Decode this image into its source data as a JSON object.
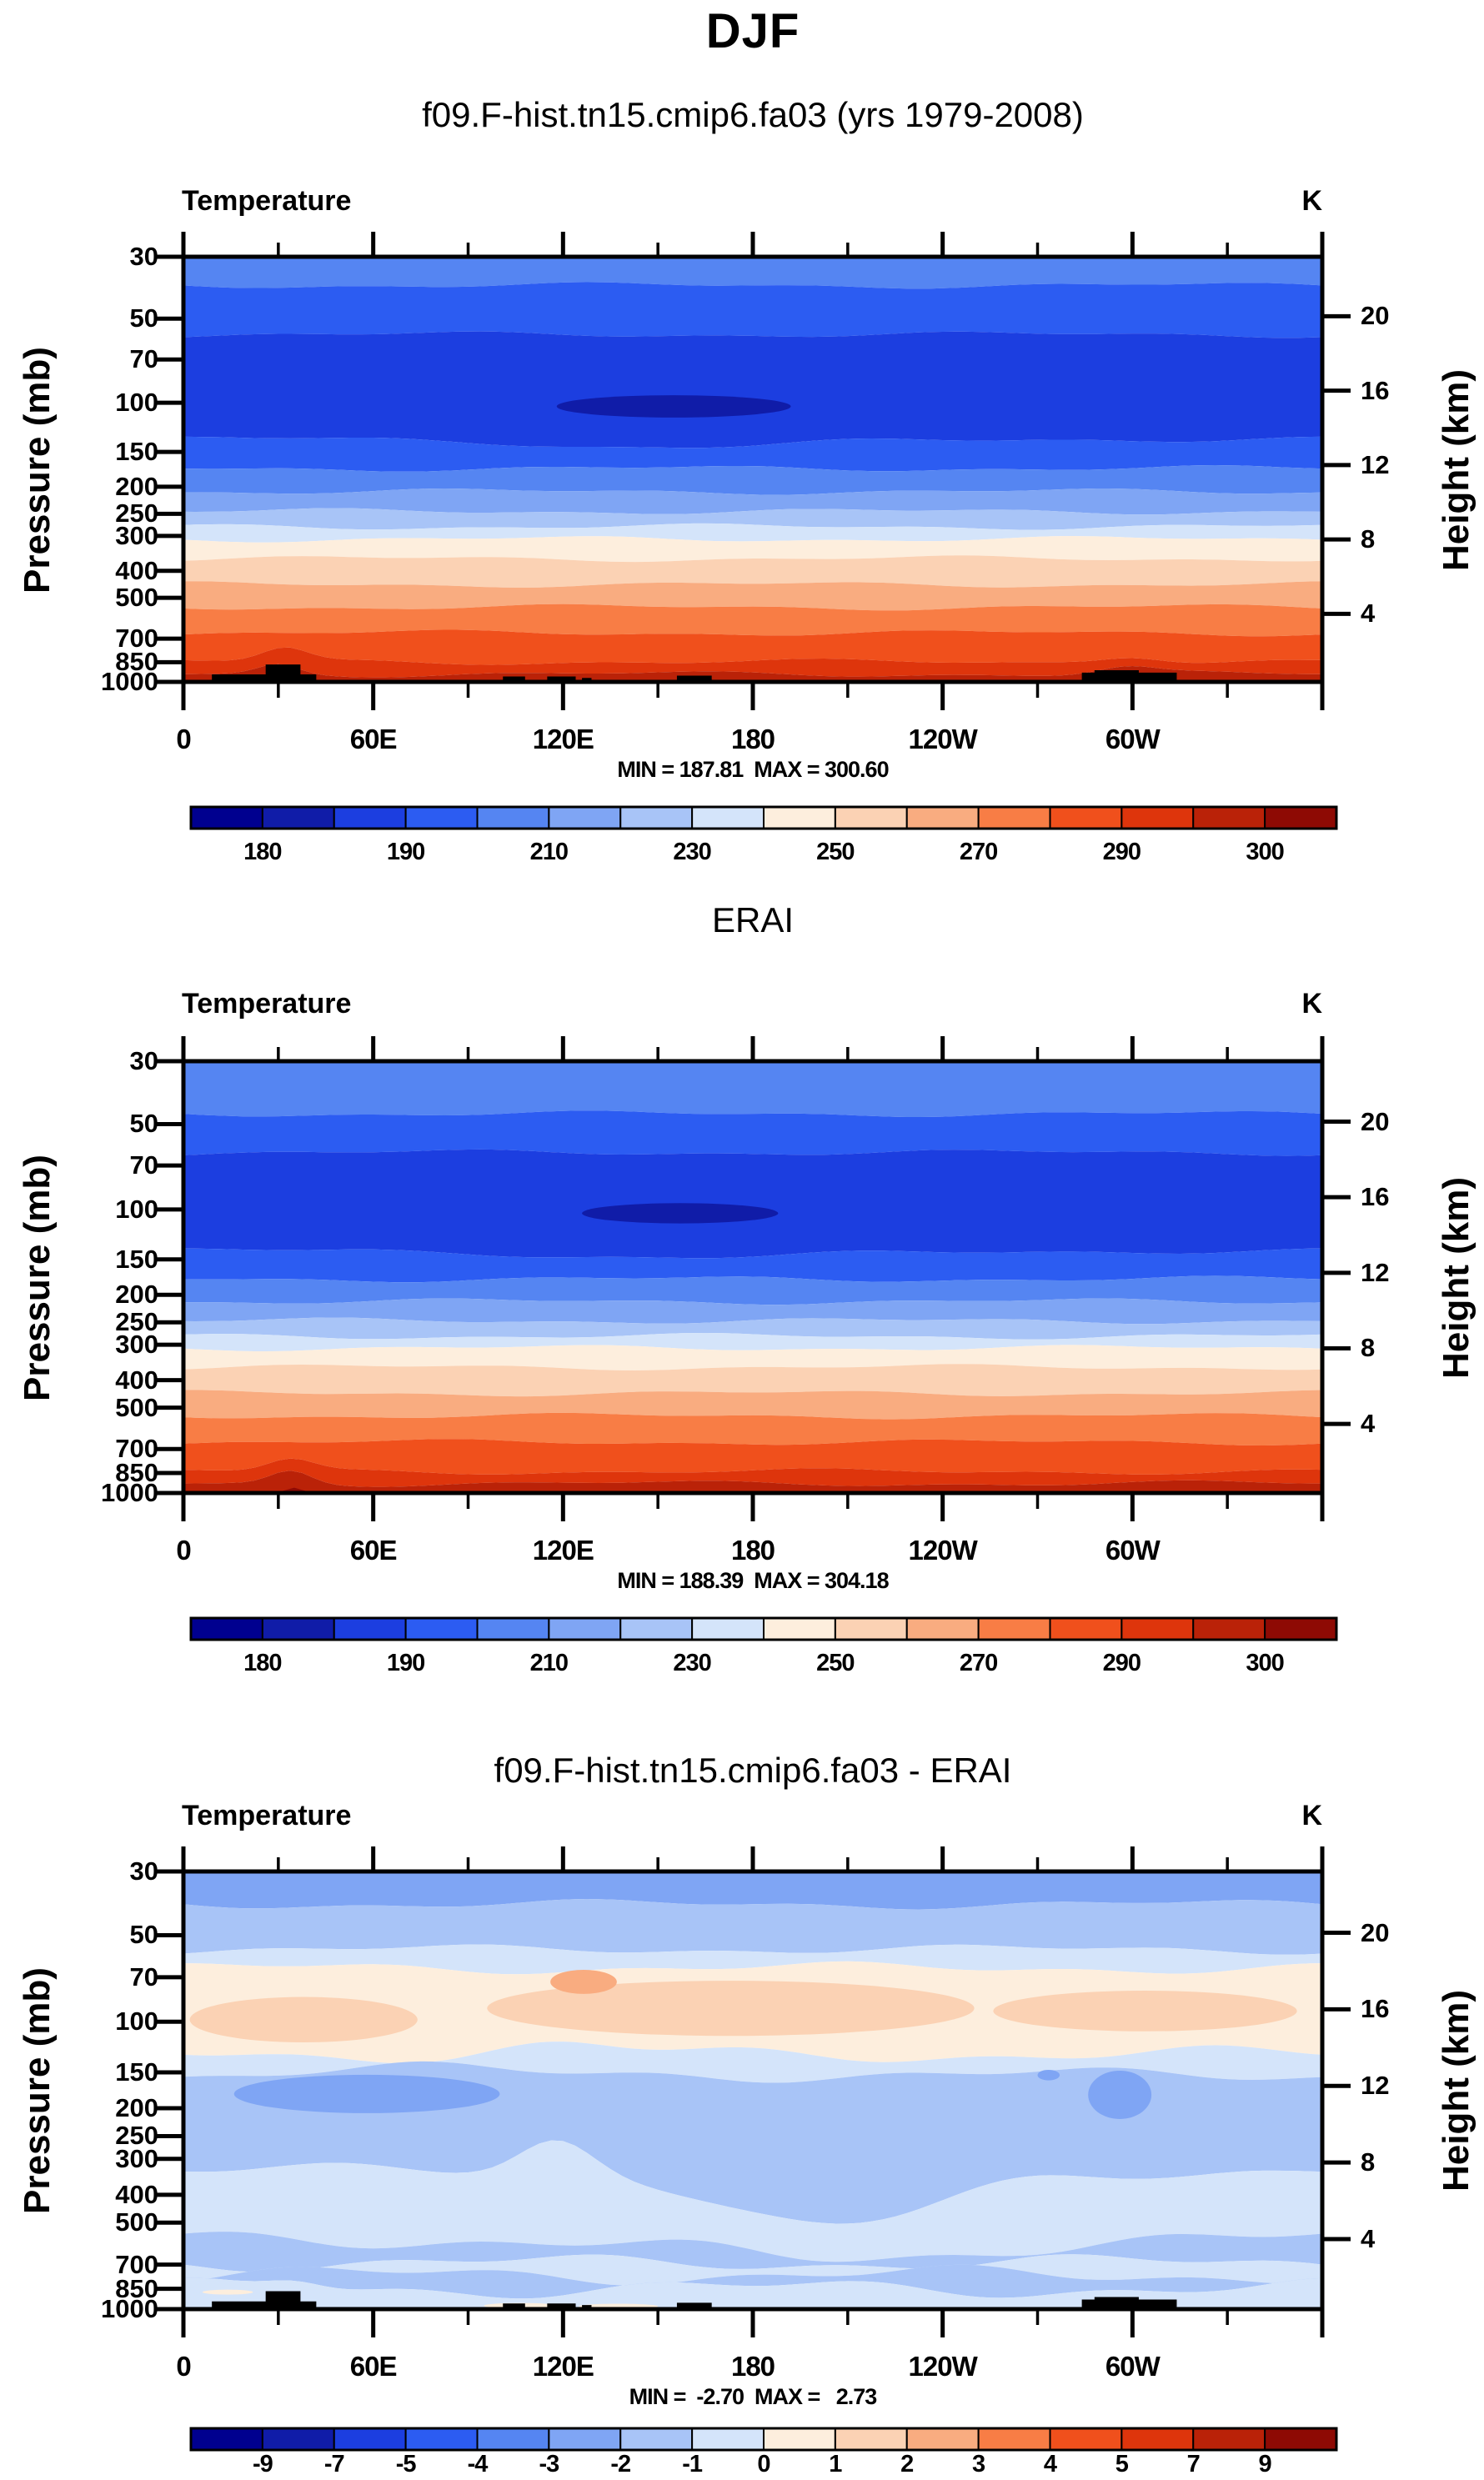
{
  "page": {
    "title": "DJF",
    "subtitle": "f09.F-hist.tn15.cmip6.fa03 (yrs 1979-2008)"
  },
  "palette": [
    "#00008f",
    "#101ca8",
    "#1c3ee0",
    "#2c5cf2",
    "#5585f2",
    "#7fa5f4",
    "#a8c4f7",
    "#d4e4fa",
    "#fdeedd",
    "#fbd2b4",
    "#f9ac80",
    "#f87d45",
    "#f0501c",
    "#de350c",
    "#ba2208",
    "#8e0a04"
  ],
  "axis": {
    "x_tick_labels": [
      "0",
      "60E",
      "120E",
      "180",
      "120W",
      "60W"
    ],
    "x_tick_lons": [
      0,
      60,
      120,
      180,
      240,
      300
    ],
    "x_minor_lons": [
      30,
      90,
      150,
      210,
      270,
      330
    ],
    "pressure_ticks": [
      "30",
      "50",
      "70",
      "100",
      "150",
      "200",
      "250",
      "300",
      "400",
      "500",
      "700",
      "850",
      "1000"
    ],
    "pressure_values": [
      30,
      50,
      70,
      100,
      150,
      200,
      250,
      300,
      400,
      500,
      700,
      850,
      1000
    ],
    "height_ticks": [
      "20",
      "16",
      "12",
      "8",
      "4"
    ],
    "height_values": [
      20,
      16,
      12,
      8,
      4
    ],
    "pressure_axis_title": "Pressure (mb)",
    "height_axis_title": "Height (km)"
  },
  "chart_data": {
    "type": "filled-contour-cross-section",
    "x_range_deg": [
      0,
      360
    ],
    "pressure_range_mb": [
      30,
      1000
    ],
    "panels": [
      {
        "name": "model",
        "title": "f09.F-hist.tn15.cmip6.fa03 (yrs 1979-2008)",
        "field_label": "Temperature",
        "unit_label": "K",
        "min": 187.81,
        "max": 300.6,
        "minmax_text": "MIN = 187.81  MAX = 300.60",
        "amp": 2.5,
        "bands": [
          {
            "p": 38,
            "c": 5
          },
          {
            "p": 57,
            "c": 4
          },
          {
            "p": 135,
            "c": 3,
            "b": [
              [
                155,
                55,
                10
              ]
            ]
          },
          {
            "p": 172,
            "c": 4
          },
          {
            "p": 208,
            "c": 5
          },
          {
            "p": 245,
            "c": 6
          },
          {
            "p": 278,
            "c": 7
          },
          {
            "p": 308,
            "c": 8
          },
          {
            "p": 362,
            "c": 9
          },
          {
            "p": 448,
            "c": 10
          },
          {
            "p": 540,
            "c": 11
          },
          {
            "p": 668,
            "c": 12
          },
          {
            "p": 848,
            "c": 13,
            "b": [
              [
                32,
                10,
                -16
              ],
              [
                300,
                14,
                -8
              ]
            ]
          },
          {
            "p": 938,
            "c": 14,
            "b": [
              [
                30,
                9,
                -12
              ],
              [
                298,
                12,
                -8
              ]
            ]
          },
          {
            "p": 1001,
            "c": 15
          }
        ],
        "blobs": [
          {
            "k": "lens",
            "lon": [
              118,
              192
            ],
            "p": [
              94,
              113
            ],
            "c": 2
          }
        ],
        "topo": [
          [
            9,
            42,
            940
          ],
          [
            26,
            37,
            866
          ],
          [
            101,
            108,
            956
          ],
          [
            115,
            124,
            956
          ],
          [
            126,
            129,
            968
          ],
          [
            156,
            167,
            950
          ],
          [
            284,
            314,
            926
          ],
          [
            288,
            302,
            908
          ]
        ],
        "colorbar": {
          "levels": [
            180,
            185,
            190,
            200,
            210,
            220,
            230,
            240,
            250,
            260,
            270,
            280,
            290,
            295,
            300
          ],
          "label_texts": [
            "180",
            "190",
            "210",
            "230",
            "250",
            "270",
            "290",
            "300"
          ],
          "label_bounds": [
            1,
            3,
            5,
            7,
            9,
            11,
            13,
            15
          ]
        }
      },
      {
        "name": "reference",
        "title": "ERAI",
        "field_label": "Temperature",
        "unit_label": "K",
        "min": 188.39,
        "max": 304.18,
        "minmax_text": "MIN = 188.39  MAX = 304.18",
        "amp": 2.5,
        "bands": [
          {
            "p": 46,
            "c": 5
          },
          {
            "p": 63,
            "c": 4
          },
          {
            "p": 140,
            "c": 3,
            "b": [
              [
                160,
                60,
                8
              ]
            ]
          },
          {
            "p": 176,
            "c": 4
          },
          {
            "p": 211,
            "c": 5
          },
          {
            "p": 247,
            "c": 6
          },
          {
            "p": 280,
            "c": 7
          },
          {
            "p": 308,
            "c": 8
          },
          {
            "p": 360,
            "c": 9
          },
          {
            "p": 445,
            "c": 10
          },
          {
            "p": 535,
            "c": 11
          },
          {
            "p": 662,
            "c": 12
          },
          {
            "p": 840,
            "c": 13,
            "b": [
              [
                34,
                10,
                -14
              ]
            ]
          },
          {
            "p": 926,
            "c": 14,
            "b": [
              [
                34,
                9,
                -16
              ]
            ]
          },
          {
            "p": 1001,
            "c": 15
          }
        ],
        "blobs": [
          {
            "k": "lens",
            "lon": [
              126,
              188
            ],
            "p": [
              95,
              112
            ],
            "c": 2
          },
          {
            "k": "tri",
            "lon": [
              29,
              41
            ],
            "p": [
              958,
              1000
            ],
            "c": 16
          }
        ],
        "topo": [],
        "colorbar": {
          "levels": [
            180,
            185,
            190,
            200,
            210,
            220,
            230,
            240,
            250,
            260,
            270,
            280,
            290,
            295,
            300
          ],
          "label_texts": [
            "180",
            "190",
            "210",
            "230",
            "250",
            "270",
            "290",
            "300"
          ],
          "label_bounds": [
            1,
            3,
            5,
            7,
            9,
            11,
            13,
            15
          ]
        }
      },
      {
        "name": "difference",
        "title": "f09.F-hist.tn15.cmip6.fa03 - ERAI",
        "field_label": "Temperature",
        "unit_label": "K",
        "min": -2.7,
        "max": 2.73,
        "minmax_text": "MIN =  -2.70  MAX =   2.73",
        "amp": 5,
        "bands": [
          {
            "p": 39,
            "c": 6,
            "a": 4
          },
          {
            "p": 56,
            "c": 7,
            "a": 4
          },
          {
            "p": 65,
            "c": 8,
            "a": 5
          },
          {
            "p": 130,
            "c": 9,
            "a": 7,
            "b": [
              [
                120,
                25,
                -10
              ]
            ]
          },
          {
            "p": 153,
            "c": 8,
            "a": 6,
            "b": [
              [
                60,
                35,
                -10
              ]
            ]
          },
          {
            "p": 330,
            "c": 7,
            "a": 6,
            "b": [
              [
                205,
                45,
                70
              ],
              [
                118,
                16,
                -40
              ]
            ]
          },
          {
            "p": 572,
            "c": 8,
            "a": 8,
            "b": [
              [
                205,
                55,
                25
              ]
            ]
          },
          {
            "p": 690,
            "c": 7,
            "a": 7
          },
          {
            "p": 762,
            "c": 8,
            "a": 8
          },
          {
            "p": 848,
            "c": 7,
            "a": 8,
            "b": [
              [
                35,
                12,
                -10
              ]
            ]
          },
          {
            "p": 1001,
            "c": 8
          }
        ],
        "blobs": [
          {
            "k": "lens",
            "lon": [
              2,
              74
            ],
            "p": [
              82,
              118
            ],
            "c": 10
          },
          {
            "k": "lens",
            "lon": [
              96,
              250
            ],
            "p": [
              72,
              112
            ],
            "c": 10
          },
          {
            "k": "lens",
            "lon": [
              256,
              352
            ],
            "p": [
              78,
              108
            ],
            "c": 10
          },
          {
            "k": "lens",
            "lon": [
              116,
              137
            ],
            "p": [
              66,
              80
            ],
            "c": 11
          },
          {
            "k": "lens",
            "lon": [
              16,
              100
            ],
            "p": [
              153,
              208
            ],
            "c": 6
          },
          {
            "k": "lens",
            "lon": [
              286,
              306
            ],
            "p": [
              148,
              218
            ],
            "c": 6
          },
          {
            "k": "lens",
            "lon": [
              270,
              277
            ],
            "p": [
              147,
              160
            ],
            "c": 6
          },
          {
            "k": "lens",
            "lon": [
              6,
              22
            ],
            "p": [
              858,
              888
            ],
            "c": 9
          },
          {
            "k": "lens",
            "lon": [
              95,
              118
            ],
            "p": [
              952,
              995
            ],
            "c": 9
          },
          {
            "k": "lens",
            "lon": [
              125,
              150
            ],
            "p": [
              958,
              998
            ],
            "c": 9
          }
        ],
        "topo": [
          [
            9,
            42,
            940
          ],
          [
            26,
            37,
            866
          ],
          [
            101,
            108,
            956
          ],
          [
            115,
            124,
            956
          ],
          [
            126,
            129,
            968
          ],
          [
            156,
            167,
            950
          ],
          [
            284,
            314,
            926
          ],
          [
            288,
            302,
            908
          ]
        ],
        "colorbar": {
          "levels": [
            -9,
            -7,
            -5,
            -4,
            -3,
            -2,
            -1,
            0,
            1,
            2,
            3,
            4,
            5,
            7,
            9
          ],
          "label_texts": [
            "-9",
            "-7",
            "-5",
            "-4",
            "-3",
            "-2",
            "-1",
            "0",
            "1",
            "2",
            "3",
            "4",
            "5",
            "7",
            "9"
          ],
          "label_bounds": [
            1,
            2,
            3,
            4,
            5,
            6,
            7,
            8,
            9,
            10,
            11,
            12,
            13,
            14,
            15
          ]
        }
      }
    ]
  }
}
